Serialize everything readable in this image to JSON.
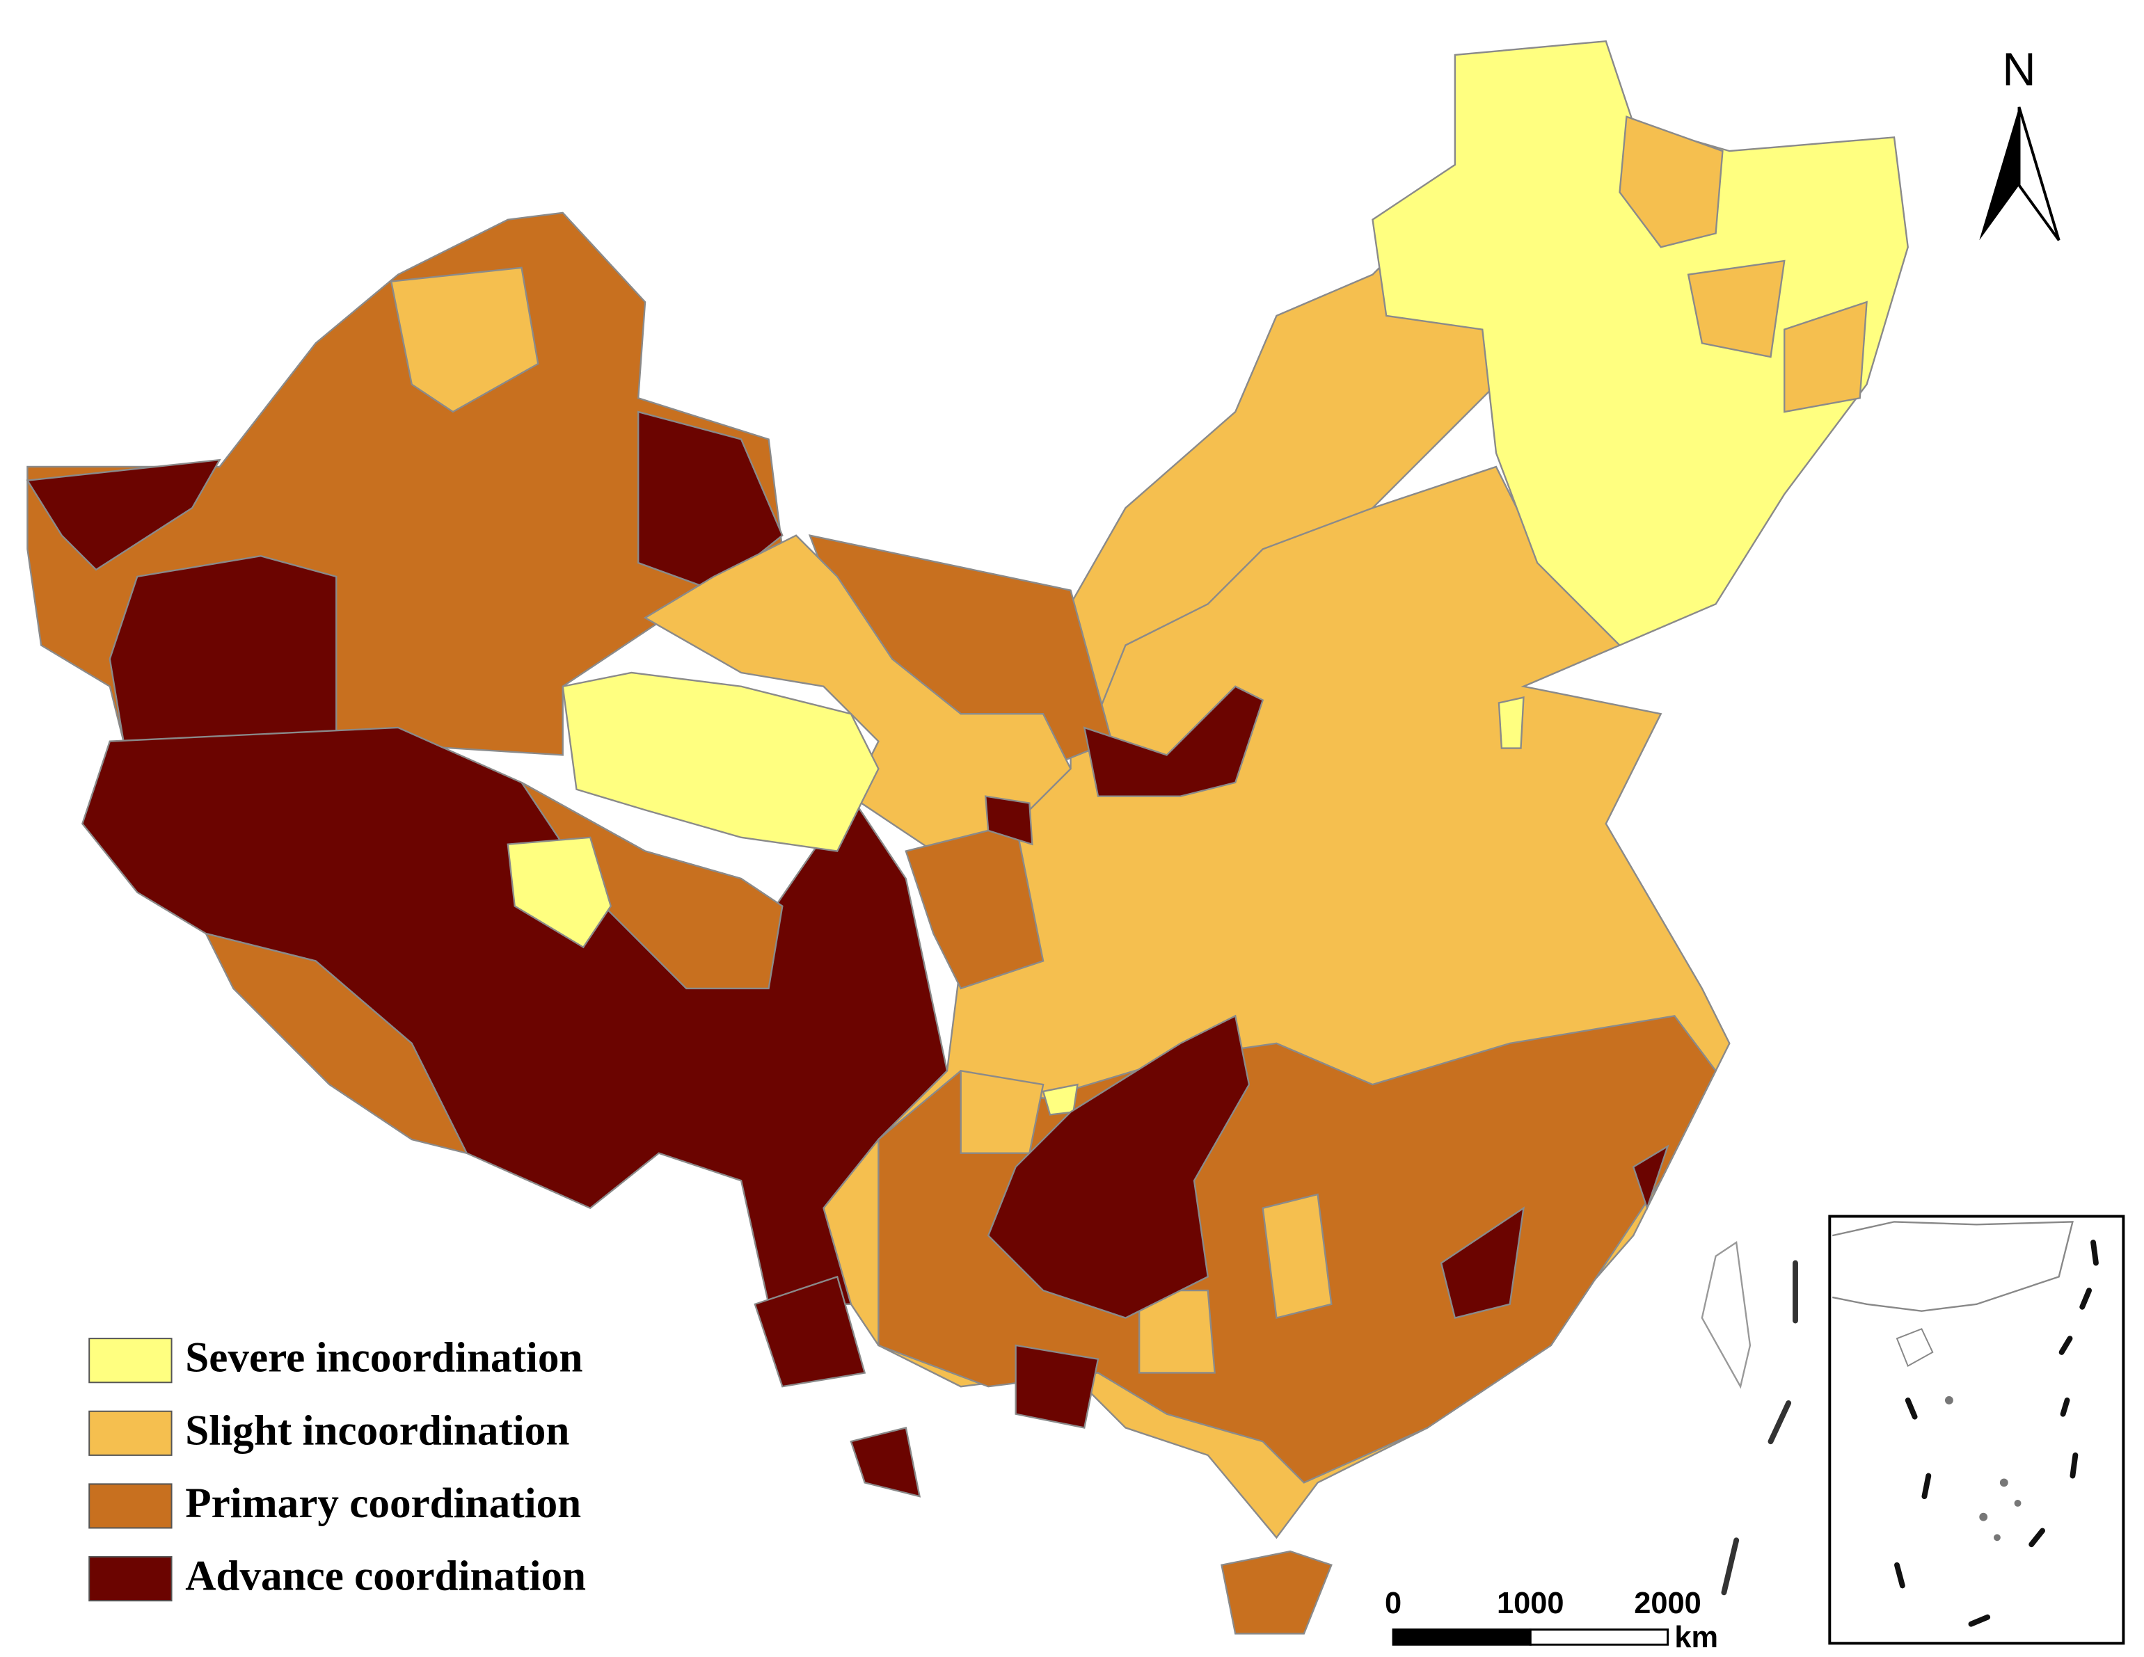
{
  "legend": [
    {
      "label": "Severe incoordination",
      "color": "#ffff80"
    },
    {
      "label": "Slight incoordination",
      "color": "#f5bf4f"
    },
    {
      "label": "Primary coordination",
      "color": "#c8701f"
    },
    {
      "label": "Advance coordination",
      "color": "#6b0400"
    }
  ],
  "north_arrow": {
    "label": "N"
  },
  "scale_bar": {
    "ticks": [
      0,
      1000,
      2000
    ],
    "unit": "km"
  }
}
